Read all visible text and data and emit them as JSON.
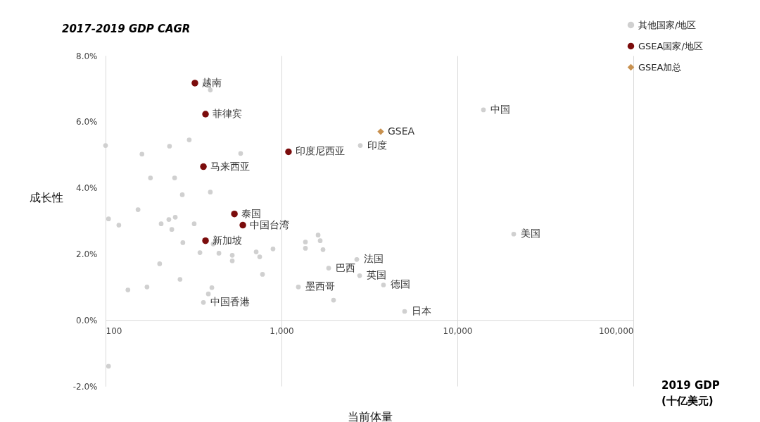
{
  "chart_data": {
    "type": "scatter",
    "title": "2017-2019 GDP CAGR",
    "xlabel": "当前体量",
    "ylabel": "成长性",
    "log": "x",
    "grid": "x",
    "legend": "top right",
    "xlim": [
      100,
      100000
    ],
    "ylim": [
      -2,
      8
    ],
    "xticks": [
      {
        "value": 100,
        "label": "100"
      },
      {
        "value": 1000,
        "label": "1,000"
      },
      {
        "value": 10000,
        "label": "10,000"
      },
      {
        "value": 100000,
        "label": "100,000"
      }
    ],
    "yticks": [
      {
        "value": -2,
        "label": "-2.0%"
      },
      {
        "value": 0,
        "label": "0.0%"
      },
      {
        "value": 2,
        "label": "2.0%"
      },
      {
        "value": 4,
        "label": "4.0%"
      },
      {
        "value": 6,
        "label": "6.0%"
      },
      {
        "value": 8,
        "label": "8.0%"
      }
    ],
    "series": [
      {
        "name": "其他国家/地区",
        "color": "#d0d0d0",
        "marker": "circle",
        "x": [
          14060,
          2805,
          20900,
          2680,
          1854,
          2780,
          3800,
          1247,
          5010,
          360,
          394,
          100,
          161,
          231,
          299,
          586,
          180,
          247,
          273,
          394,
          153,
          104,
          119,
          207,
          229,
          249,
          238,
          319,
          275,
          409,
          344,
          441,
          525,
          525,
          718,
          752,
          895,
          1368,
          1368,
          203,
          780,
          265,
          134,
          172,
          402,
          384,
          104,
          1615,
          1660,
          1722,
          1977
        ],
        "values": [
          6.36,
          5.28,
          2.6,
          1.83,
          1.57,
          1.34,
          1.06,
          1.0,
          0.26,
          0.53,
          6.96,
          5.28,
          5.02,
          5.26,
          5.45,
          5.04,
          4.3,
          4.3,
          3.79,
          3.87,
          3.34,
          3.06,
          2.87,
          2.91,
          3.04,
          3.11,
          2.74,
          2.91,
          2.34,
          2.3,
          2.04,
          2.02,
          1.96,
          1.79,
          2.06,
          1.91,
          2.15,
          2.36,
          2.17,
          1.7,
          1.38,
          1.23,
          0.91,
          1.0,
          0.98,
          0.79,
          -1.4,
          2.57,
          2.4,
          2.13,
          0.6
        ]
      },
      {
        "name": "GSEA国家/地区",
        "color": "#7b0c0c",
        "marker": "circle",
        "x": [
          322,
          370,
          360,
          1096,
          540,
          603,
          370
        ],
        "values": [
          7.17,
          6.23,
          4.64,
          5.09,
          3.21,
          2.87,
          2.4
        ]
      },
      {
        "name": "GSEA加总",
        "color": "#c8914f",
        "marker": "diamond",
        "x": [
          3664
        ],
        "values": [
          5.7
        ]
      }
    ],
    "annotations": [
      {
        "text": "越南",
        "x": 322,
        "y": 7.17
      },
      {
        "text": "菲律宾",
        "x": 370,
        "y": 6.23
      },
      {
        "text": "马来西亚",
        "x": 360,
        "y": 4.64
      },
      {
        "text": "印度尼西亚",
        "x": 1096,
        "y": 5.09
      },
      {
        "text": "泰国",
        "x": 540,
        "y": 3.21
      },
      {
        "text": "中国台湾",
        "x": 603,
        "y": 2.87
      },
      {
        "text": "新加坡",
        "x": 370,
        "y": 2.4
      },
      {
        "text": "GSEA",
        "x": 3664,
        "y": 5.7
      },
      {
        "text": "中国",
        "x": 14060,
        "y": 6.36
      },
      {
        "text": "印度",
        "x": 2805,
        "y": 5.28
      },
      {
        "text": "美国",
        "x": 20900,
        "y": 2.6
      },
      {
        "text": "法国",
        "x": 2680,
        "y": 1.83
      },
      {
        "text": "巴西",
        "x": 1854,
        "y": 1.57
      },
      {
        "text": "英国",
        "x": 2780,
        "y": 1.34
      },
      {
        "text": "德国",
        "x": 3800,
        "y": 1.06
      },
      {
        "text": "墨西哥",
        "x": 1247,
        "y": 1.0
      },
      {
        "text": "日本",
        "x": 5010,
        "y": 0.26
      },
      {
        "text": "中国香港",
        "x": 360,
        "y": 0.53
      },
      "2019 GDP\n(十亿美元)"
    ]
  }
}
